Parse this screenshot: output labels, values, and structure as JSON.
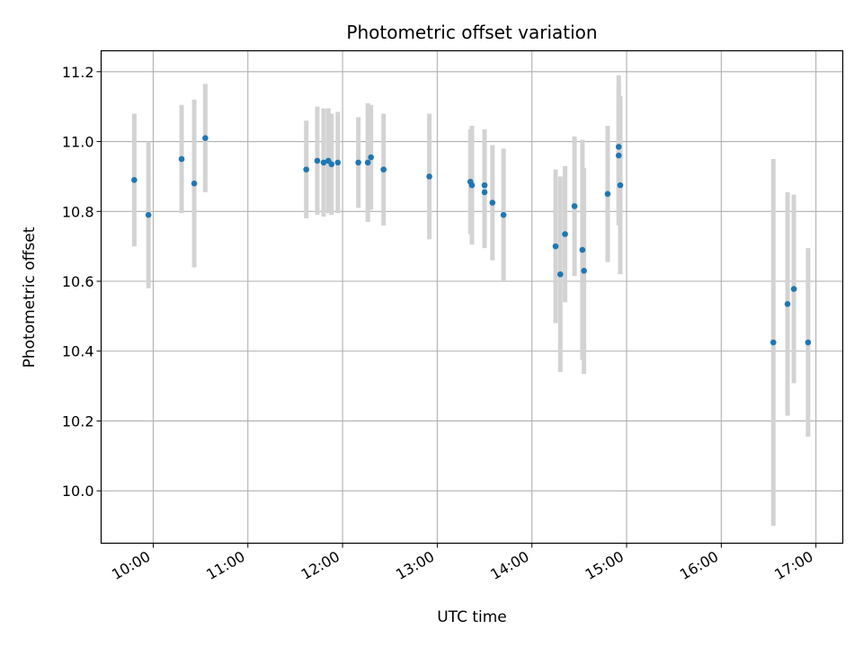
{
  "chart_data": {
    "type": "scatter",
    "title": "Photometric offset variation",
    "xlabel": "UTC time",
    "ylabel": "Photometric offset",
    "x_unit": "UTC hours",
    "xlim": [
      "09:27",
      "17:17"
    ],
    "ylim": [
      9.85,
      11.26
    ],
    "x_ticks": [
      "10:00",
      "11:00",
      "12:00",
      "13:00",
      "14:00",
      "15:00",
      "16:00",
      "17:00"
    ],
    "y_ticks": [
      10.0,
      10.2,
      10.4,
      10.6,
      10.8,
      11.0,
      11.2
    ],
    "y_tick_labels": [
      "10.0",
      "10.2",
      "10.4",
      "10.6",
      "10.8",
      "11.0",
      "11.2"
    ],
    "grid": true,
    "colors": {
      "marker": "#1f77b4",
      "errorbar": "#d3d3d3",
      "grid": "#b0b0b0"
    },
    "points": [
      {
        "x": "09:48",
        "y": 10.89,
        "yerr": 0.19
      },
      {
        "x": "09:57",
        "y": 10.79,
        "yerr": 0.21
      },
      {
        "x": "10:18",
        "y": 10.95,
        "yerr": 0.155
      },
      {
        "x": "10:26",
        "y": 10.88,
        "yerr": 0.24
      },
      {
        "x": "10:33",
        "y": 11.01,
        "yerr": 0.155
      },
      {
        "x": "11:37",
        "y": 10.92,
        "yerr": 0.14
      },
      {
        "x": "11:44",
        "y": 10.945,
        "yerr": 0.155
      },
      {
        "x": "11:48",
        "y": 10.94,
        "yerr": 0.155
      },
      {
        "x": "11:51",
        "y": 10.945,
        "yerr": 0.15
      },
      {
        "x": "11:53",
        "y": 10.935,
        "yerr": 0.145
      },
      {
        "x": "11:57",
        "y": 10.94,
        "yerr": 0.145
      },
      {
        "x": "12:10",
        "y": 10.94,
        "yerr": 0.13
      },
      {
        "x": "12:16",
        "y": 10.94,
        "yerr": 0.17
      },
      {
        "x": "12:18",
        "y": 10.955,
        "yerr": 0.15
      },
      {
        "x": "12:26",
        "y": 10.92,
        "yerr": 0.16
      },
      {
        "x": "12:55",
        "y": 10.9,
        "yerr": 0.18
      },
      {
        "x": "13:21",
        "y": 10.885,
        "yerr": 0.15
      },
      {
        "x": "13:22",
        "y": 10.875,
        "yerr": 0.17
      },
      {
        "x": "13:30",
        "y": 10.875,
        "yerr": 0.16
      },
      {
        "x": "13:30",
        "y": 10.855,
        "yerr": 0.16
      },
      {
        "x": "13:35",
        "y": 10.825,
        "yerr": 0.165
      },
      {
        "x": "13:42",
        "y": 10.79,
        "yerr": 0.19
      },
      {
        "x": "14:15",
        "y": 10.7,
        "yerr": 0.22
      },
      {
        "x": "14:18",
        "y": 10.62,
        "yerr": 0.28
      },
      {
        "x": "14:21",
        "y": 10.735,
        "yerr": 0.195
      },
      {
        "x": "14:27",
        "y": 10.815,
        "yerr": 0.2
      },
      {
        "x": "14:32",
        "y": 10.69,
        "yerr": 0.315
      },
      {
        "x": "14:33",
        "y": 10.63,
        "yerr": 0.295
      },
      {
        "x": "14:48",
        "y": 10.85,
        "yerr": 0.195
      },
      {
        "x": "14:55",
        "y": 10.985,
        "yerr": 0.205
      },
      {
        "x": "14:55",
        "y": 10.96,
        "yerr": 0.2
      },
      {
        "x": "14:56",
        "y": 10.875,
        "yerr": 0.255
      },
      {
        "x": "16:33",
        "y": 10.425,
        "yerr": 0.525
      },
      {
        "x": "16:42",
        "y": 10.535,
        "yerr": 0.32
      },
      {
        "x": "16:46",
        "y": 10.578,
        "yerr": 0.27
      },
      {
        "x": "16:55",
        "y": 10.425,
        "yerr": 0.27
      }
    ]
  }
}
